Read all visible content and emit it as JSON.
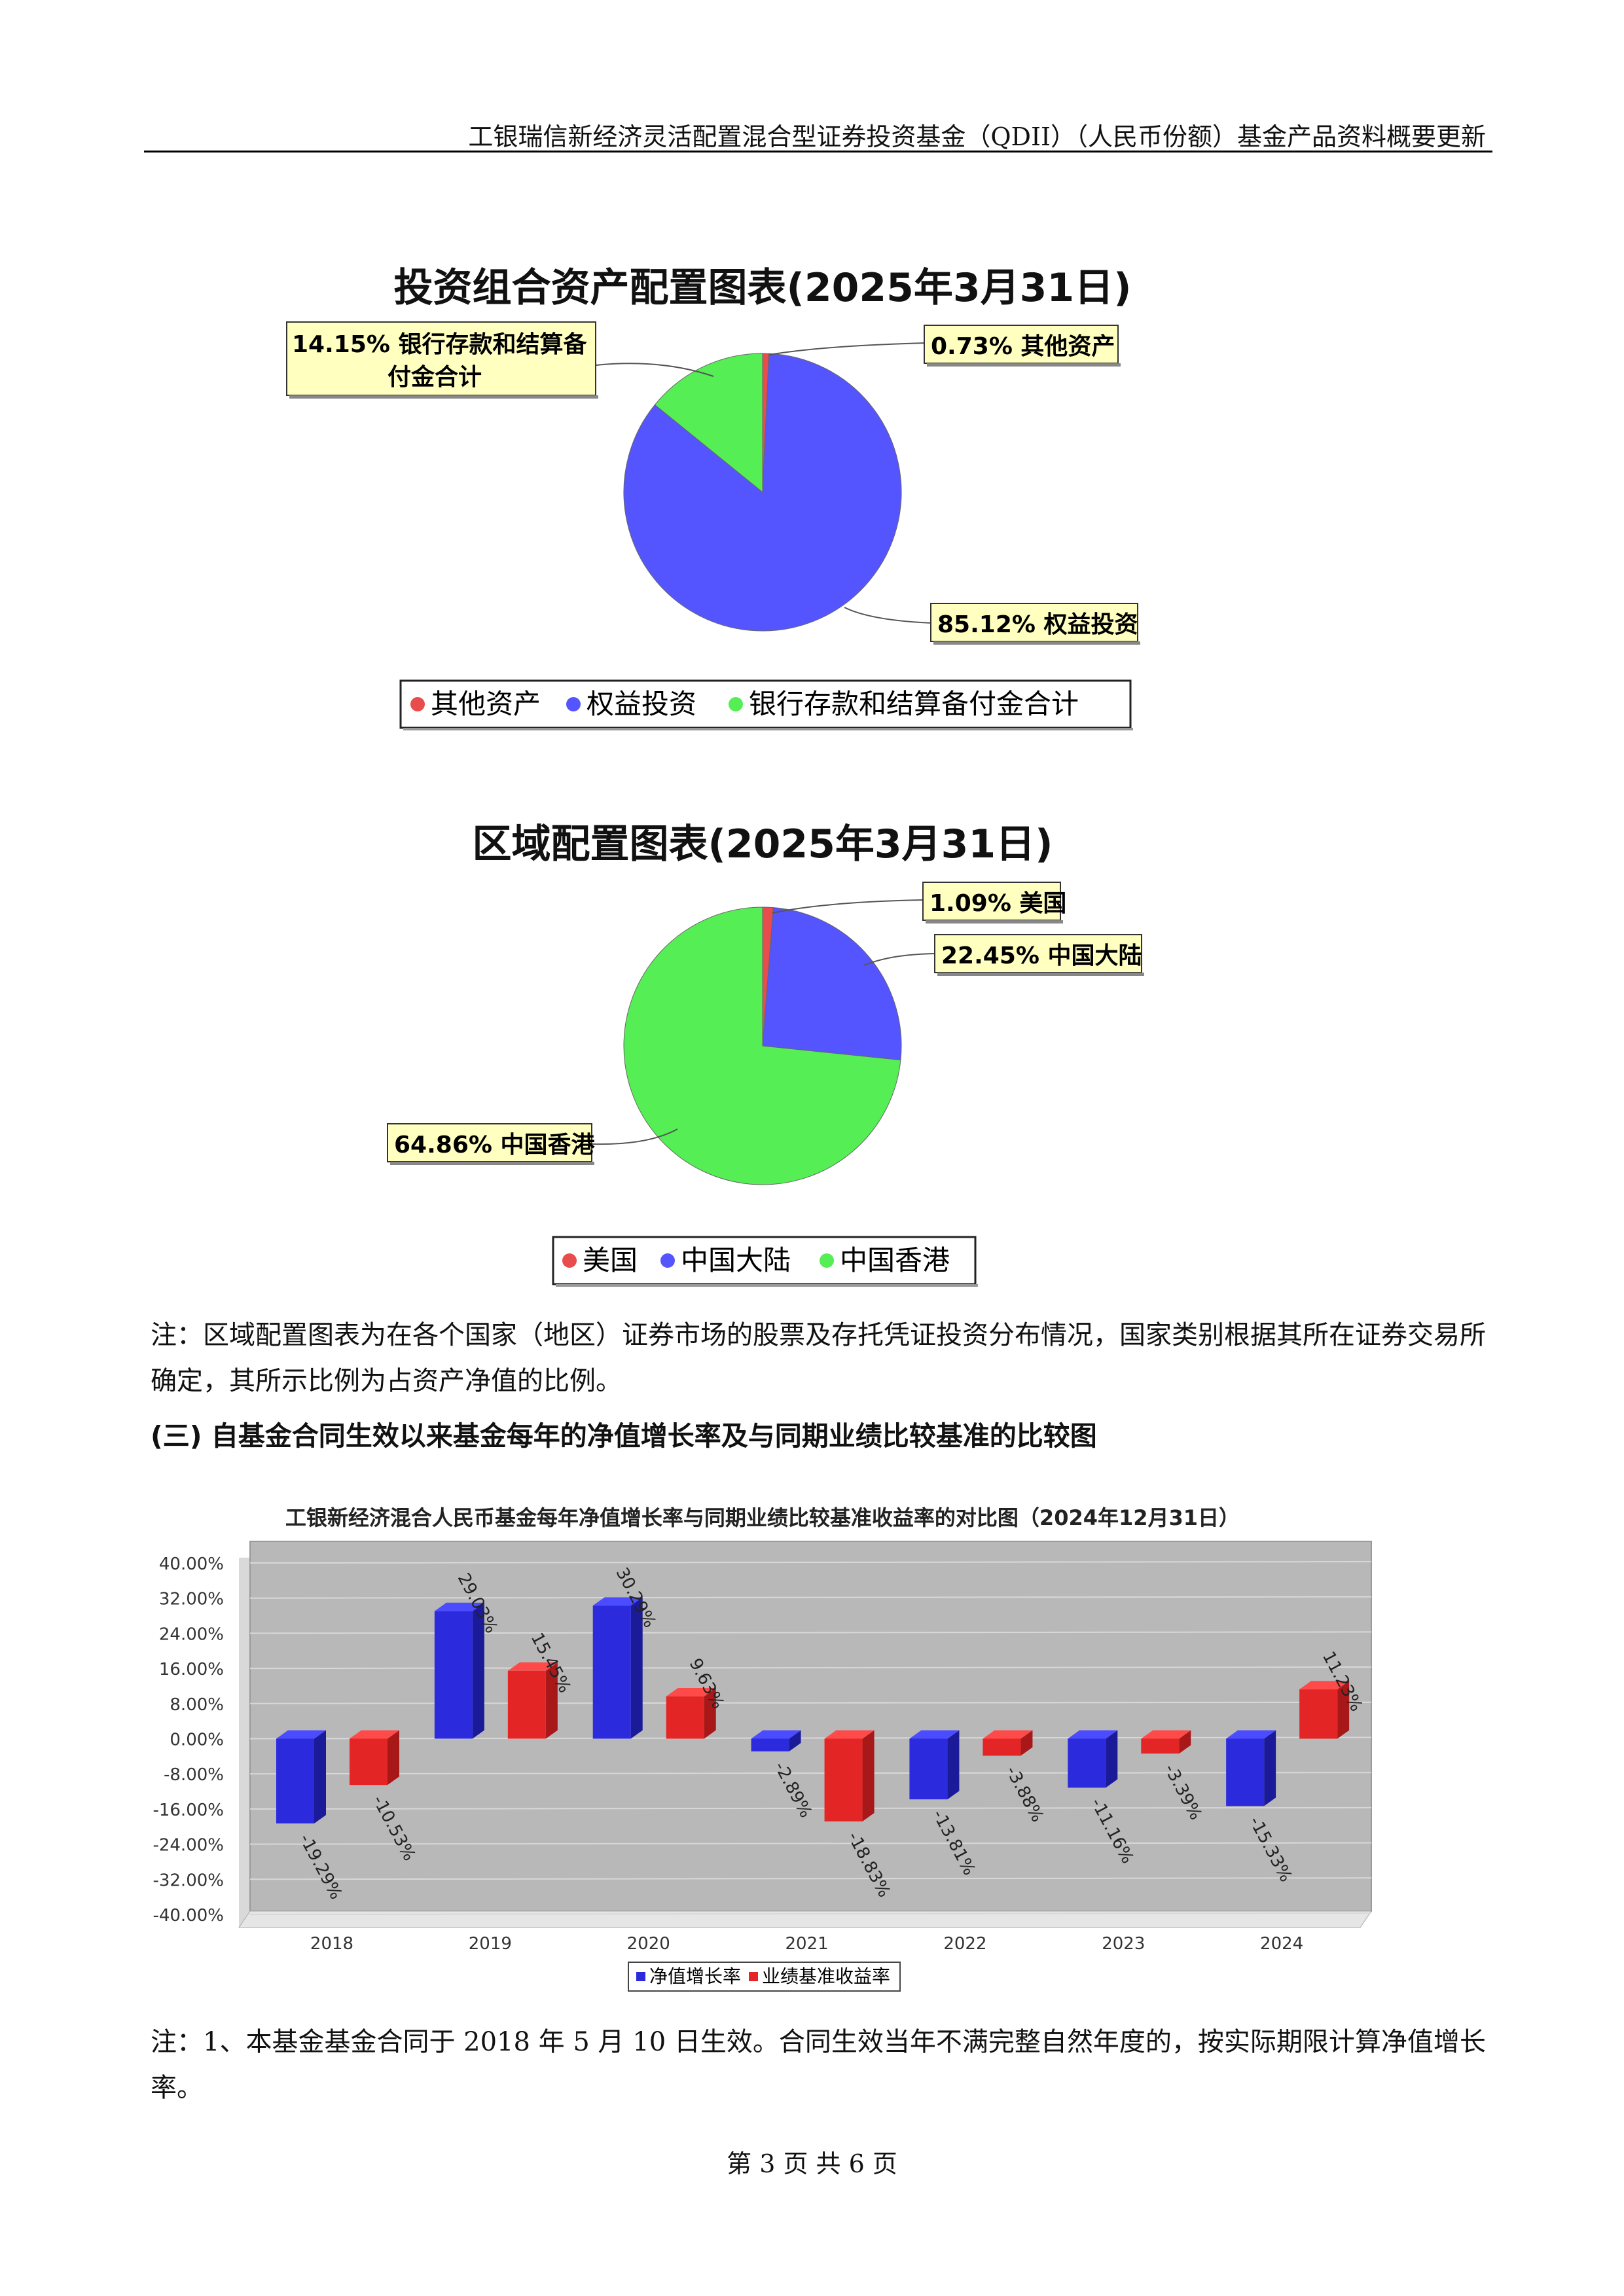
{
  "header": {
    "title": "工银瑞信新经济灵活配置混合型证券投资基金（QDII）（人民币份额）基金产品资料概要更新"
  },
  "asset_chart": {
    "title": "投资组合资产配置图表(2025年3月31日)",
    "legend": [
      "其他资产",
      "权益投资",
      "银行存款和结算备付金合计"
    ],
    "labels": {
      "other": "0.73% 其他资产",
      "equity": "85.12% 权益投资",
      "bank_line1": "14.15% 银行存款和结算备",
      "bank_line2": "付金合计"
    }
  },
  "region_chart": {
    "title": "区域配置图表(2025年3月31日)",
    "legend": [
      "美国",
      "中国大陆",
      "中国香港"
    ],
    "labels": {
      "us": "1.09% 美国",
      "mainland": "22.45% 中国大陆",
      "hk": "64.86% 中国香港"
    }
  },
  "note1": "注：区域配置图表为在各个国家（地区）证券市场的股票及存托凭证投资分布情况，国家类别根据其所在证券交易所确定，其所示比例为占资产净值的比例。",
  "section3_title": "(三) 自基金合同生效以来基金每年的净值增长率及与同期业绩比较基准的比较图",
  "bar_chart": {
    "title": "工银新经济混合人民币基金每年净值增长率与同期业绩比较基准收益率的对比图（2024年12月31日）",
    "legend": [
      "净值增长率",
      "业绩基准收益率"
    ],
    "y_ticks": [
      "40.00%",
      "32.00%",
      "24.00%",
      "16.00%",
      "8.00%",
      "0.00%",
      "-8.00%",
      "-16.00%",
      "-24.00%",
      "-32.00%",
      "-40.00%"
    ]
  },
  "note2": "注：1、本基金基金合同于 2018 年 5 月 10 日生效。合同生效当年不满完整自然年度的，按实际期限计算净值增长率。",
  "footer": "第 3 页 共 6 页",
  "chart_data": [
    {
      "type": "pie",
      "title": "投资组合资产配置图表(2025年3月31日)",
      "categories": [
        "其他资产",
        "权益投资",
        "银行存款和结算备付金合计"
      ],
      "values": [
        0.73,
        85.12,
        14.15
      ],
      "colors": [
        "#e84c4c",
        "#5555ff",
        "#55ee55"
      ],
      "legend": "bottom"
    },
    {
      "type": "pie",
      "title": "区域配置图表(2025年3月31日)",
      "categories": [
        "美国",
        "中国大陆",
        "中国香港"
      ],
      "values": [
        1.09,
        22.45,
        64.86
      ],
      "colors": [
        "#e84c4c",
        "#5555ff",
        "#55ee55"
      ],
      "legend": "bottom"
    },
    {
      "type": "bar",
      "title": "工银新经济混合人民币基金每年净值增长率与同期业绩比较基准收益率的对比图（2024年12月31日）",
      "categories": [
        "2018",
        "2019",
        "2020",
        "2021",
        "2022",
        "2023",
        "2024"
      ],
      "series": [
        {
          "name": "净值增长率",
          "values": [
            -19.29,
            29.03,
            30.29,
            -2.89,
            -13.81,
            -11.16,
            -15.33
          ],
          "color": "#2b2bdd"
        },
        {
          "name": "业绩基准收益率",
          "values": [
            -10.53,
            15.45,
            9.63,
            -18.83,
            -3.88,
            -3.39,
            11.23
          ],
          "color": "#e42525"
        }
      ],
      "ylim": [
        -40,
        40
      ],
      "legend": "bottom"
    }
  ]
}
